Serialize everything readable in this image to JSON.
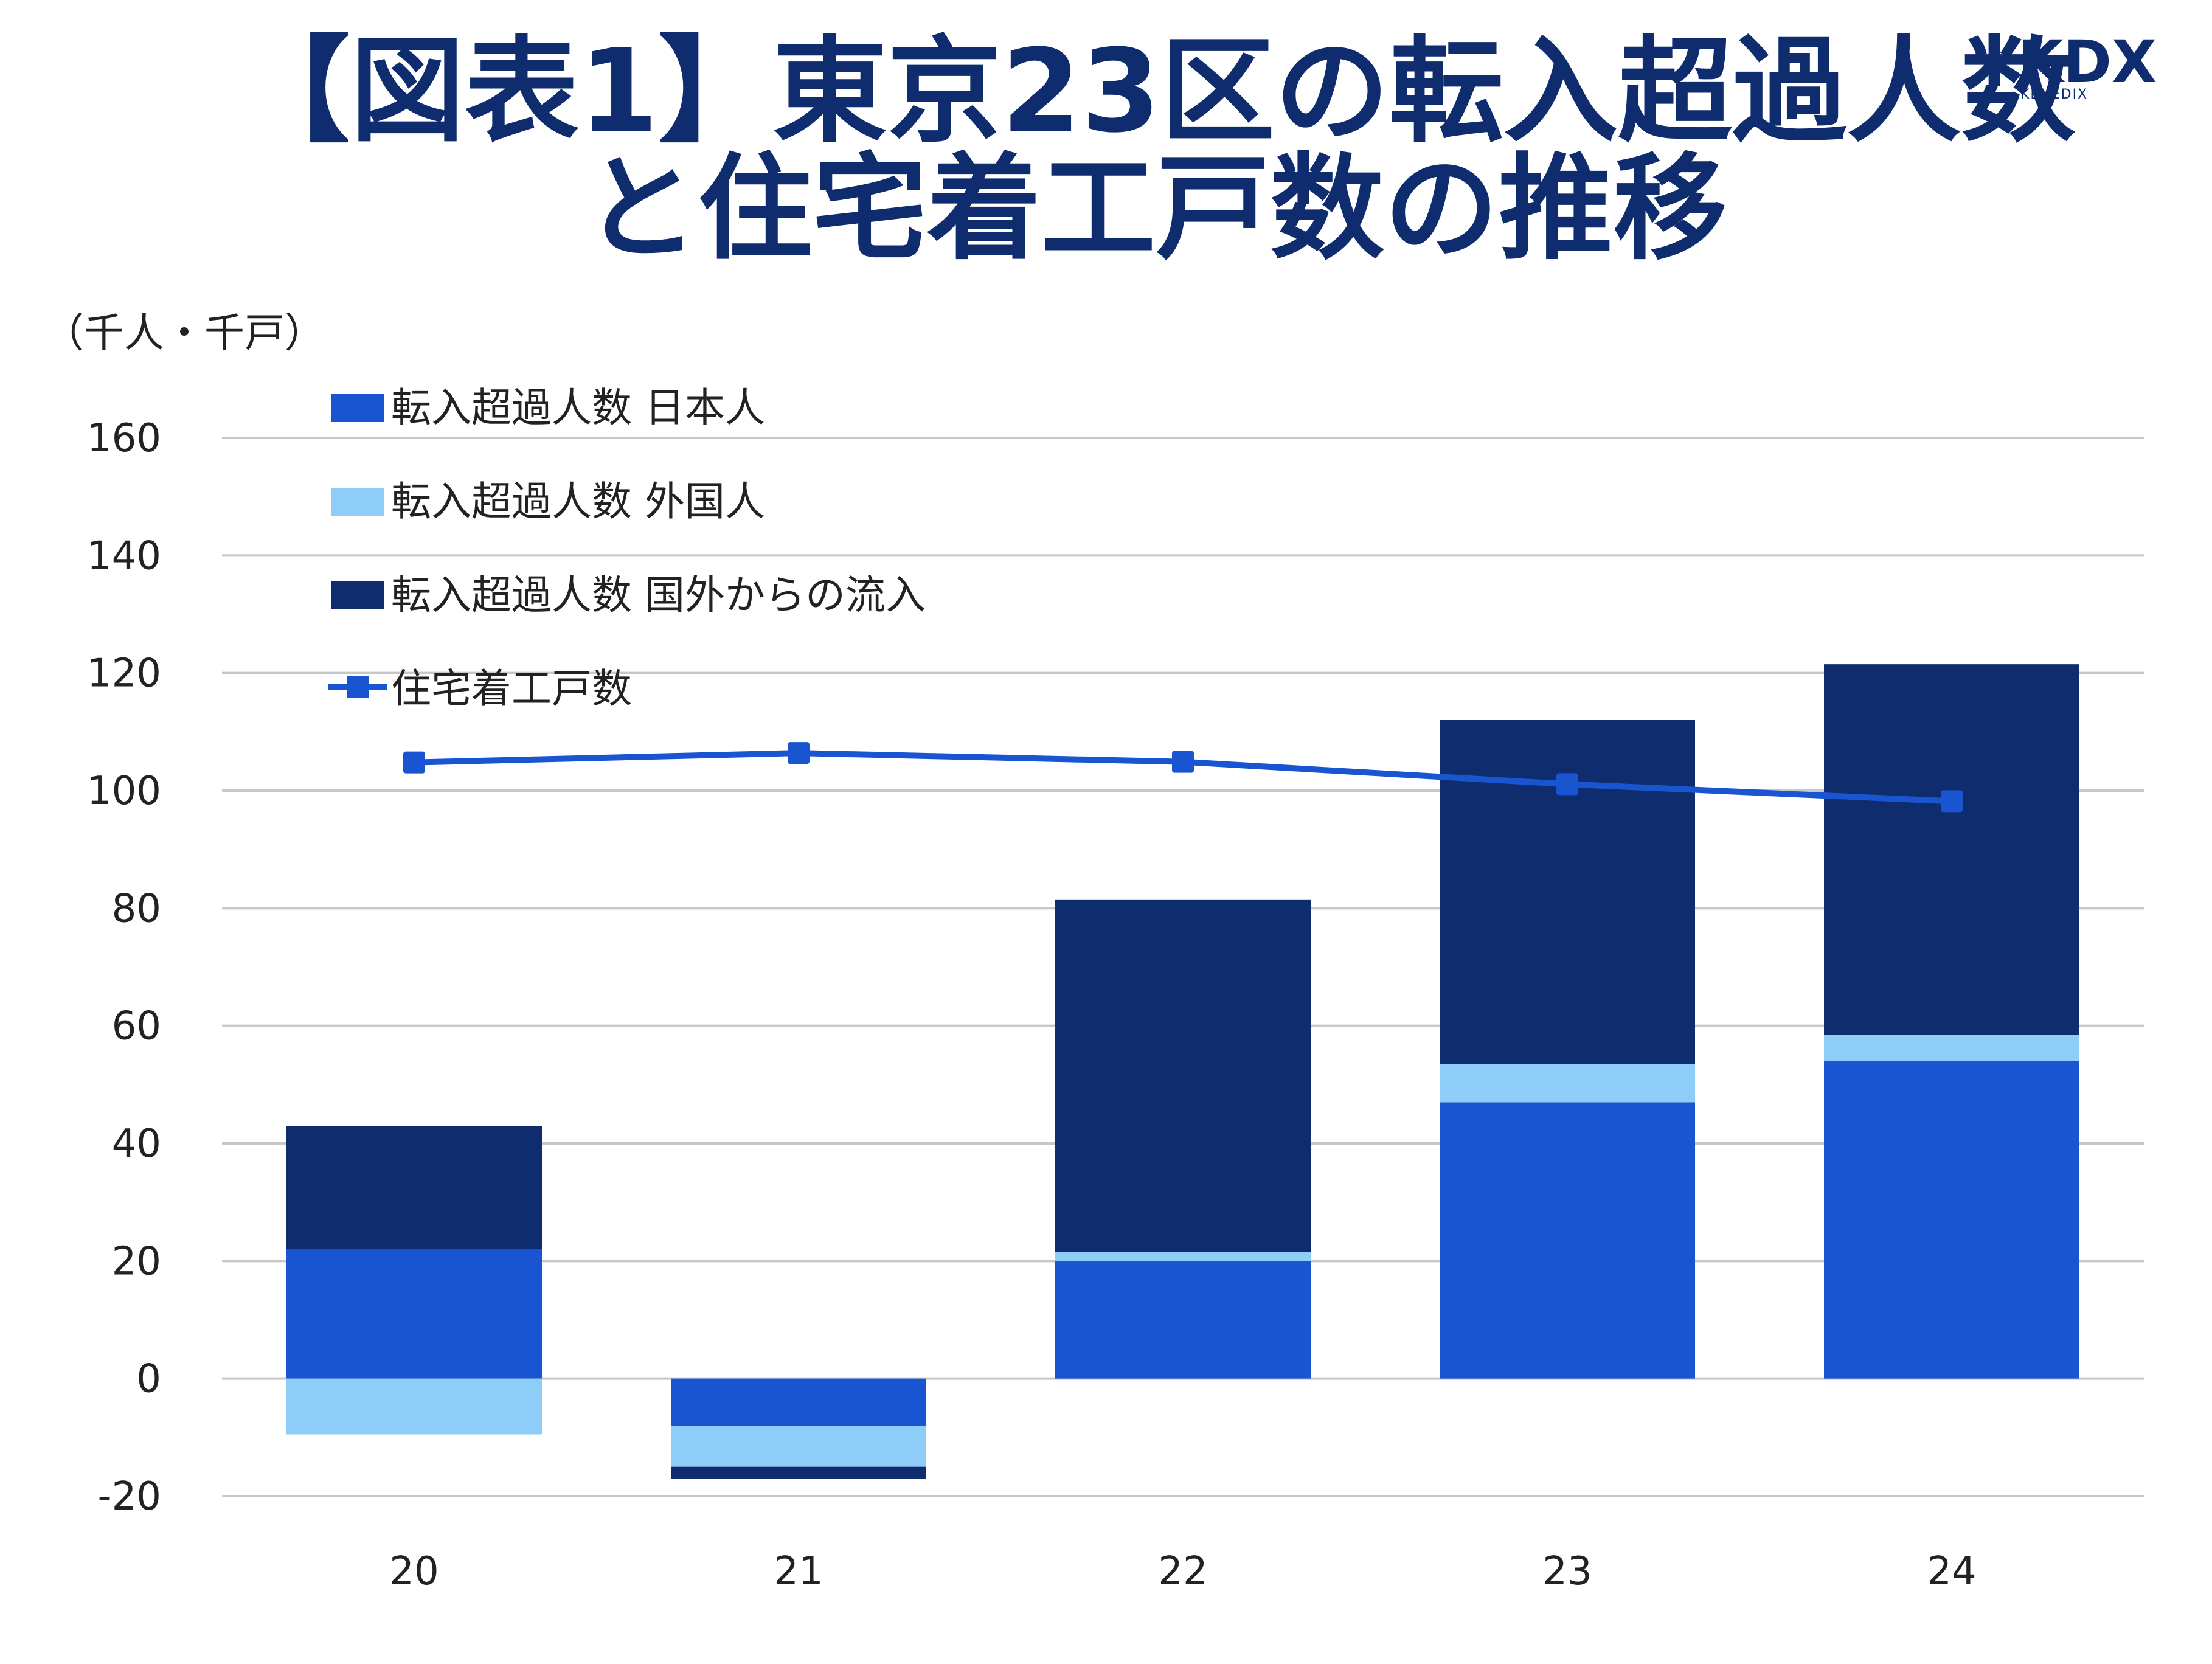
{
  "header": {
    "title_line1": "【図表1】東京23区の転入超過人数",
    "title_line2": "と住宅着工戸数の推移"
  },
  "logo": {
    "main": "KDX",
    "sub": "KENEDIX"
  },
  "colors": {
    "japanese": "#1a55d1",
    "foreign": "#8ecdf7",
    "overseas": "#0e2c6e",
    "housing": "#1a55d1",
    "grid": "#c8c8c8",
    "title": "#0e2c6e"
  },
  "chart_data": {
    "type": "bar",
    "stacked": true,
    "unit_label": "（千人・千戸）",
    "categories": [
      "20",
      "21",
      "22",
      "23",
      "24"
    ],
    "ylim": [
      -20,
      160
    ],
    "yticks": [
      -20,
      0,
      20,
      40,
      60,
      80,
      100,
      120,
      140,
      160
    ],
    "grid": true,
    "legend_position": "top-left",
    "series": [
      {
        "key": "japanese",
        "name": "転入超過人数 日本人",
        "kind": "bar",
        "values": [
          22,
          -8,
          20,
          47,
          54
        ]
      },
      {
        "key": "foreign",
        "name": "転入超過人数 外国人",
        "kind": "bar",
        "values": [
          -9.5,
          -7,
          1.5,
          6.5,
          4.5
        ]
      },
      {
        "key": "overseas",
        "name": "転入超過人数 国外からの流入",
        "kind": "bar",
        "values": [
          21,
          -2,
          60,
          58.5,
          63
        ]
      },
      {
        "key": "housing",
        "name": "住宅着工戸数",
        "kind": "line",
        "values": [
          104.8,
          106.4,
          104.9,
          101.1,
          98.2
        ]
      }
    ]
  }
}
